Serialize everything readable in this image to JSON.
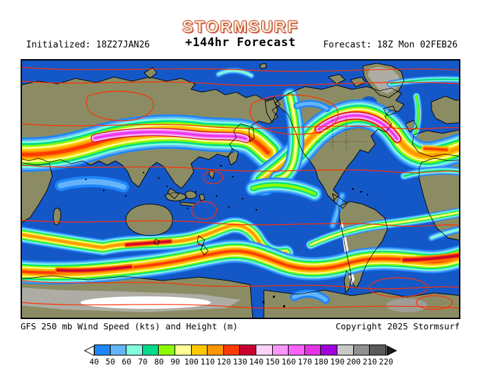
{
  "header": {
    "logo": "STORMSURF",
    "initialized": "Initialized: 18Z27JAN26",
    "forecast_title": "+144hr Forecast",
    "forecast_valid": "Forecast: 18Z Mon 02FEB26"
  },
  "footer": {
    "product": "GFS 250 mb Wind Speed (kts) and Height (m)",
    "copyright": "Copyright 2025 Stormsurf"
  },
  "colorbar": {
    "unit": "kts",
    "values": [
      "40",
      "50",
      "60",
      "70",
      "80",
      "90",
      "100",
      "110",
      "120",
      "130",
      "140",
      "150",
      "160",
      "170",
      "180",
      "190",
      "200",
      "210",
      "220"
    ],
    "colors": [
      "#1E86FA",
      "#64B4FA",
      "#82FFDC",
      "#00DC8C",
      "#8CFA00",
      "#FFFF96",
      "#FFC800",
      "#FF9600",
      "#FF3C00",
      "#C80032",
      "#FAD2FA",
      "#FA96FA",
      "#FA64FA",
      "#E632E6",
      "#A000DC",
      "#C8C8C8",
      "#909090",
      "#5A5A5A"
    ]
  },
  "map": {
    "colors": {
      "ocean": "#1458C8",
      "land": "#8C8C64",
      "polar_ice": "#ADADA5",
      "snow": "#FFFFFF",
      "height_contour": "#FF2E00",
      "coastline": "#000000",
      "logo_fill": "#F5ECC8",
      "logo_outline": "#C13028"
    }
  }
}
